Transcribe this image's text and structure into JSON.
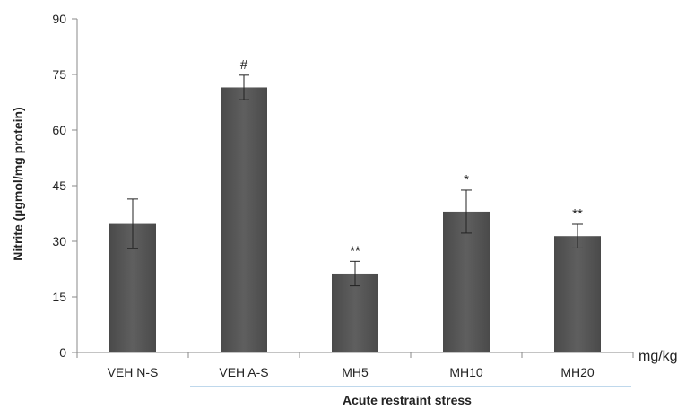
{
  "chart_data": {
    "type": "bar",
    "categories": [
      "VEH N-S",
      "VEH A-S",
      "MH5",
      "MH10",
      "MH20"
    ],
    "values": [
      34.7,
      71.5,
      21.3,
      38.0,
      31.4
    ],
    "errors": [
      6.7,
      3.3,
      3.3,
      5.8,
      3.2
    ],
    "annotations": [
      "",
      "#",
      "**",
      "*",
      "**"
    ],
    "ylabel": "Nitrite (µgmol/mg protein)",
    "ylim": [
      0,
      90
    ],
    "yticks": [
      0,
      15,
      30,
      45,
      60,
      75,
      90
    ],
    "unit_label": "mg/kg",
    "group_label": "Acute restraint stress",
    "group_categories": [
      "VEH A-S",
      "MH5",
      "MH10",
      "MH20"
    ],
    "grid": false,
    "bar_color": "#5f5f5f",
    "group_line_color": "#7fb0d9"
  }
}
